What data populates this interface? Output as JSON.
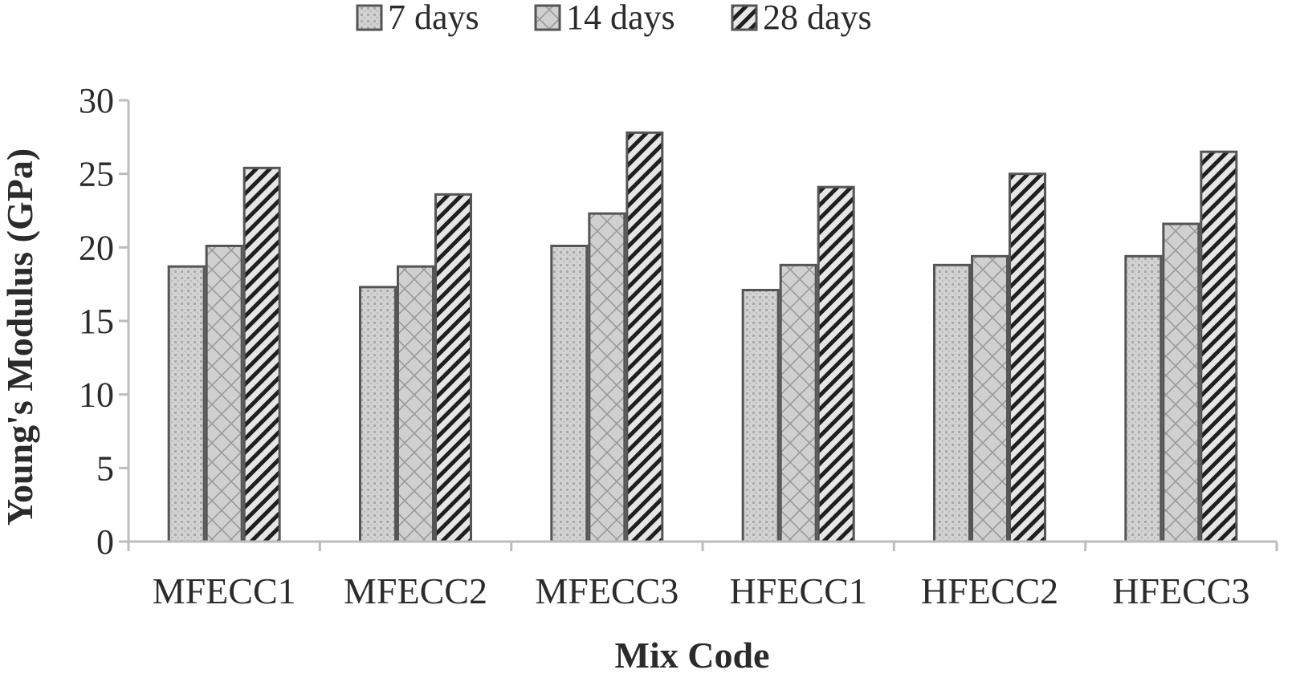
{
  "chart_data": {
    "type": "bar",
    "title": "",
    "xlabel": "Mix Code",
    "ylabel": "Young's Modulus (GPa)",
    "ylim": [
      0,
      30
    ],
    "yticks": [
      0,
      5,
      10,
      15,
      20,
      25,
      30
    ],
    "grid": false,
    "legend_position": "top-center",
    "categories": [
      "MFECC1",
      "MFECC2",
      "MFECC3",
      "HFECC1",
      "HFECC2",
      "HFECC3"
    ],
    "series": [
      {
        "name": "7 days",
        "values": [
          18.7,
          17.3,
          20.1,
          17.1,
          18.8,
          19.4
        ]
      },
      {
        "name": "14 days",
        "values": [
          20.1,
          18.7,
          22.3,
          18.8,
          19.4,
          21.6
        ]
      },
      {
        "name": "28 days",
        "values": [
          25.4,
          23.6,
          27.8,
          24.1,
          25.0,
          26.5
        ]
      }
    ],
    "colors": {
      "bar_fill": "#cfcfcf",
      "bar_stroke": "#555555",
      "axis": "#bdbdbd",
      "text": "#2b2b2b"
    }
  }
}
